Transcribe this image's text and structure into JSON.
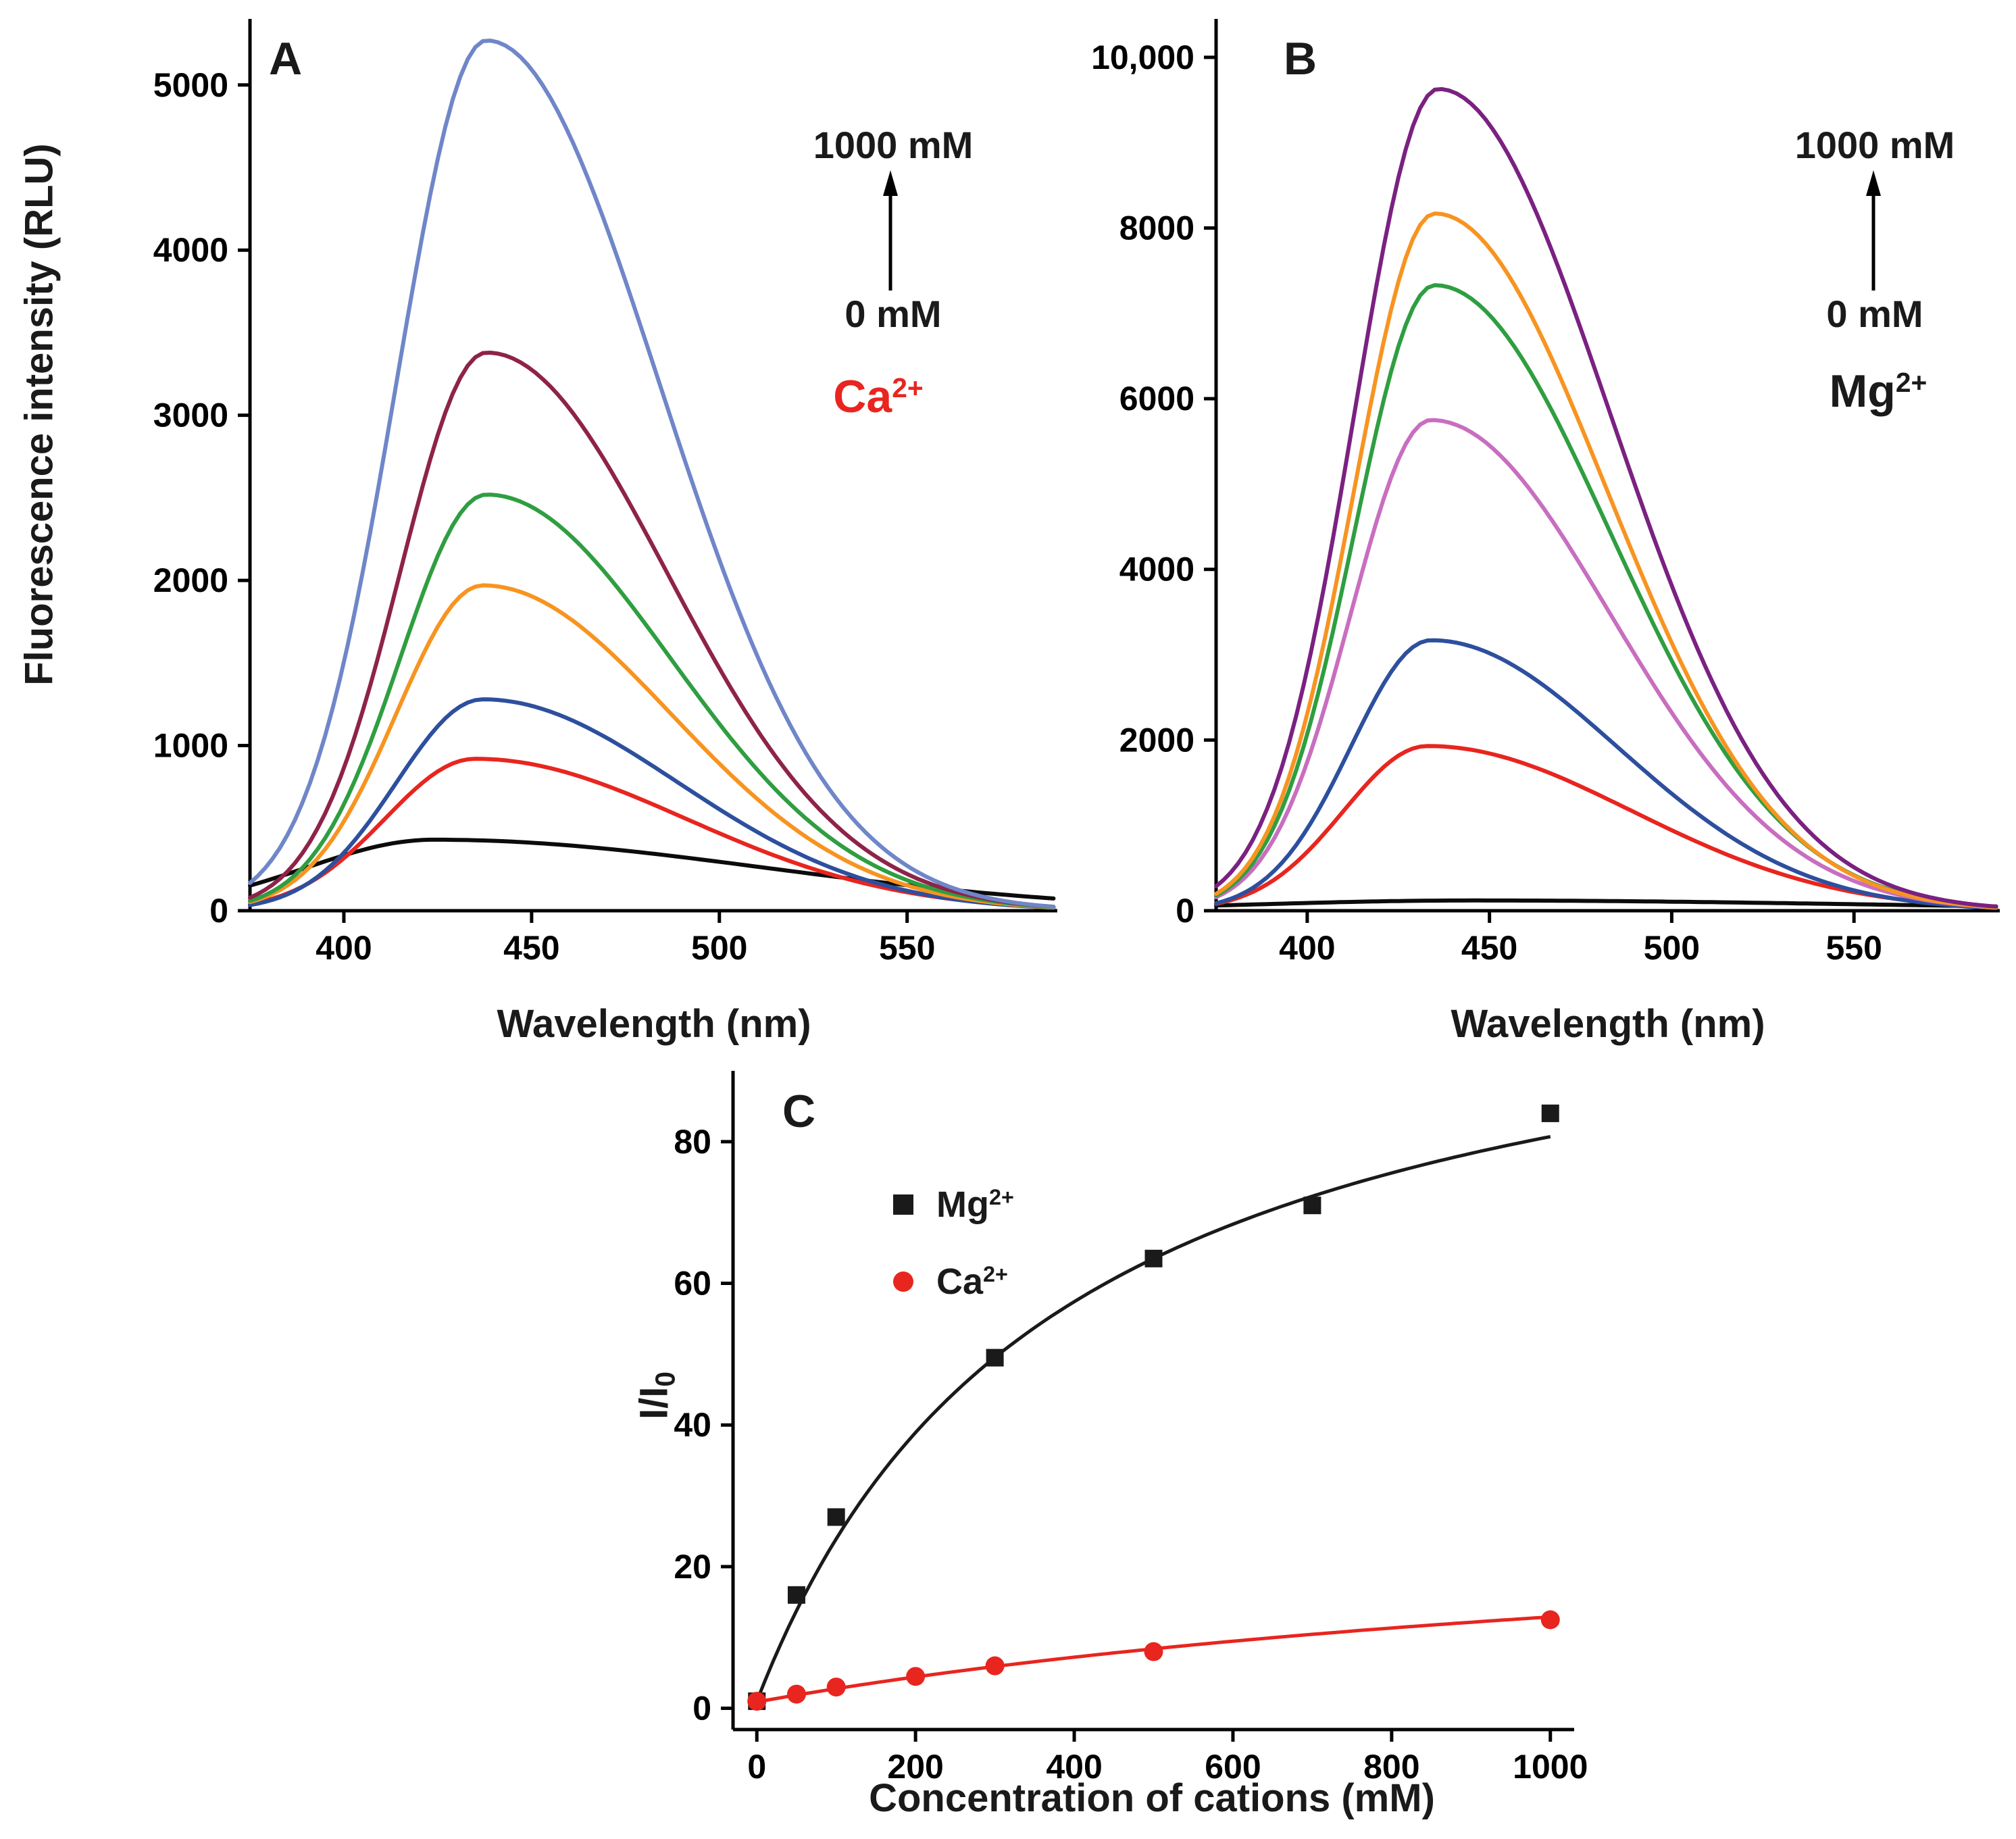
{
  "labels": {
    "panel_a": "A",
    "panel_b": "B",
    "panel_c": "C",
    "arrow_top_a": "1000 mM",
    "arrow_bottom_a": "0 mM",
    "arrow_top_b": "1000 mM",
    "arrow_bottom_b": "0 mM",
    "ion_a_base": "Ca",
    "ion_a_sup": "2+",
    "ion_b_base": "Mg",
    "ion_b_sup": "2+",
    "xlabel_ab_left": "Wavelength (nm)",
    "xlabel_ab_right": "Wavelength (nm)",
    "ylabel_a": "Fluorescence intensity (RLU)",
    "xlabel_c": "Concentration of cations (mM)",
    "ylabel_c_base": "I/I",
    "ylabel_c_sub": "0",
    "legend_mg_base": "Mg",
    "legend_mg_sup": "2+",
    "legend_ca_base": "Ca",
    "legend_ca_sup": "2+"
  },
  "colors": {
    "ca_accent": "#e8251f",
    "mg_accent": "#1a1a1a",
    "axis": "#000000"
  },
  "chart_data": [
    {
      "type": "line",
      "panel": "A",
      "title": "Emission spectra with increasing Ca2+ (0 to 1000 mM)",
      "xlabel": "Wavelength (nm)",
      "ylabel": "Fluorescence intensity (RLU)",
      "xlim": [
        375,
        590
      ],
      "ylim": [
        0,
        5400
      ],
      "xticks": [
        400,
        450,
        500,
        550
      ],
      "xtick_labels": [
        "400",
        "450",
        "500",
        "550"
      ],
      "yticks": [
        0,
        1000,
        2000,
        3000,
        4000,
        5000
      ],
      "ytick_labels": [
        "0",
        "1000",
        "2000",
        "3000",
        "4000",
        "5000"
      ],
      "annotation": {
        "high": "1000 mM",
        "low": "0 mM",
        "ion": "Ca2+"
      },
      "series": [
        {
          "name": "0 mM (black)",
          "color": "#0b0b0b",
          "peak_nm": 424,
          "peak_rlu": 430,
          "sigma_left": 34,
          "sigma_right": 88
        },
        {
          "name": "red",
          "color": "#e8251f",
          "peak_nm": 435,
          "peak_rlu": 920,
          "sigma_left": 24,
          "sigma_right": 56
        },
        {
          "name": "blue",
          "color": "#2d4f9e",
          "peak_nm": 437,
          "peak_rlu": 1280,
          "sigma_left": 23,
          "sigma_right": 52
        },
        {
          "name": "orange",
          "color": "#f79421",
          "peak_nm": 437,
          "peak_rlu": 1970,
          "sigma_left": 23,
          "sigma_right": 50
        },
        {
          "name": "green",
          "color": "#2f9e41",
          "peak_nm": 438,
          "peak_rlu": 2520,
          "sigma_left": 23,
          "sigma_right": 49
        },
        {
          "name": "dark red",
          "color": "#8e2349",
          "peak_nm": 438,
          "peak_rlu": 3380,
          "sigma_left": 23,
          "sigma_right": 48
        },
        {
          "name": "1000 mM (slate)",
          "color": "#6f86c8",
          "peak_nm": 438,
          "peak_rlu": 5270,
          "sigma_left": 24,
          "sigma_right": 46
        }
      ]
    },
    {
      "type": "line",
      "panel": "B",
      "title": "Emission spectra with increasing Mg2+ (0 to 1000 mM)",
      "xlabel": "Wavelength (nm)",
      "ylabel": "",
      "xlim": [
        375,
        590
      ],
      "ylim": [
        0,
        10450
      ],
      "xticks": [
        400,
        450,
        500,
        550
      ],
      "xtick_labels": [
        "400",
        "450",
        "500",
        "550"
      ],
      "yticks": [
        0,
        2000,
        4000,
        6000,
        8000,
        10000
      ],
      "ytick_labels": [
        "0",
        "2000",
        "4000",
        "6000",
        "8000",
        "10,000"
      ],
      "annotation": {
        "high": "1000 mM",
        "low": "0 mM",
        "ion": "Mg2+"
      },
      "series": [
        {
          "name": "0 mM (black)",
          "color": "#0b0b0b",
          "peak_nm": 445,
          "peak_rlu": 120,
          "sigma_left": 60,
          "sigma_right": 110
        },
        {
          "name": "red",
          "color": "#e8251f",
          "peak_nm": 433,
          "peak_rlu": 1930,
          "sigma_left": 23,
          "sigma_right": 56
        },
        {
          "name": "blue",
          "color": "#2d4f9e",
          "peak_nm": 434,
          "peak_rlu": 3170,
          "sigma_left": 22,
          "sigma_right": 51
        },
        {
          "name": "orchid",
          "color": "#c86ec0",
          "peak_nm": 434,
          "peak_rlu": 5750,
          "sigma_left": 22,
          "sigma_right": 49
        },
        {
          "name": "green",
          "color": "#2f9e41",
          "peak_nm": 435,
          "peak_rlu": 7330,
          "sigma_left": 22,
          "sigma_right": 48
        },
        {
          "name": "orange",
          "color": "#f79421",
          "peak_nm": 435,
          "peak_rlu": 8170,
          "sigma_left": 22,
          "sigma_right": 47
        },
        {
          "name": "1000 mM (purple)",
          "color": "#7a2181",
          "peak_nm": 436,
          "peak_rlu": 9630,
          "sigma_left": 23,
          "sigma_right": 47
        }
      ]
    },
    {
      "type": "scatter",
      "panel": "C",
      "title": "Fluorescence enhancement I/I0 vs cation concentration",
      "xlabel": "Concentration of cations (mM)",
      "ylabel": "I/I0",
      "xlim": [
        -30,
        1030
      ],
      "ylim": [
        -3,
        90
      ],
      "xticks": [
        0,
        200,
        400,
        600,
        800,
        1000
      ],
      "xtick_labels": [
        "0",
        "200",
        "400",
        "600",
        "800",
        "1000"
      ],
      "yticks": [
        0,
        20,
        40,
        60,
        80
      ],
      "ytick_labels": [
        "0",
        "20",
        "40",
        "60",
        "80"
      ],
      "series": [
        {
          "name": "Mg2+",
          "marker": "square",
          "color": "#1a1a1a",
          "x": [
            0,
            50,
            100,
            300,
            500,
            700,
            1000
          ],
          "y": [
            1,
            16,
            27,
            49.5,
            63.5,
            71,
            84
          ],
          "fit": {
            "form": "c + vmax*x/(k+x)",
            "vmax": 110,
            "k": 380,
            "c": 1
          }
        },
        {
          "name": "Ca2+",
          "marker": "circle",
          "color": "#e8251f",
          "x": [
            0,
            50,
            100,
            200,
            300,
            500,
            1000
          ],
          "y": [
            1,
            2,
            3,
            4.5,
            6,
            8,
            12.5
          ],
          "fit": {
            "form": "c + vmax*x/(k+x)",
            "vmax": 30,
            "k": 1500,
            "c": 0.9
          }
        }
      ]
    }
  ]
}
